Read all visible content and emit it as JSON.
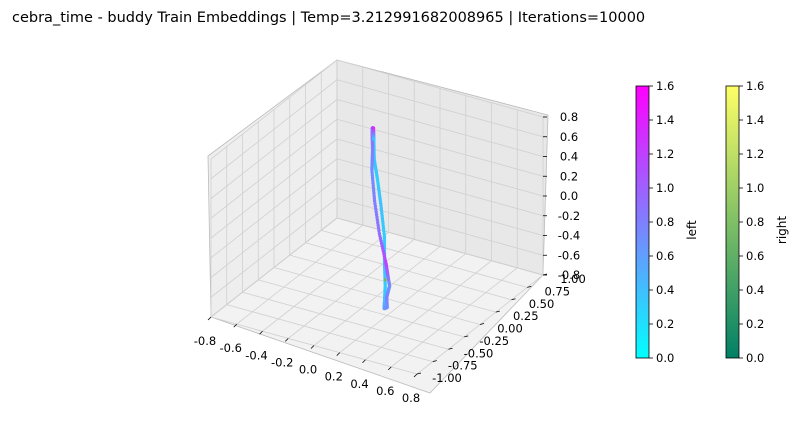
{
  "title": "cebra_time - buddy Train Embeddings | Temp=3.212991682008965 | Iterations=10000",
  "chart_data": {
    "type": "scatter",
    "projection": "3d",
    "title": "cebra_time - buddy Train Embeddings | Temp=3.212991682008965 | Iterations=10000",
    "grid": true,
    "axes": {
      "x": {
        "range": [
          -0.8,
          0.8
        ],
        "ticks": [
          "-0.8",
          "-0.6",
          "-0.4",
          "-0.2",
          "0.0",
          "0.2",
          "0.4",
          "0.6",
          "0.8"
        ]
      },
      "y": {
        "range": [
          -1.0,
          1.0
        ],
        "ticks": [
          "-1.00",
          "-0.75",
          "-0.50",
          "-0.25",
          "0.00",
          "0.25",
          "0.50",
          "0.75",
          "1.00"
        ]
      },
      "z": {
        "range": [
          -0.8,
          0.8
        ],
        "ticks": [
          "-0.8",
          "-0.6",
          "-0.4",
          "-0.2",
          "0.0",
          "0.2",
          "0.4",
          "0.6",
          "0.8"
        ]
      }
    },
    "series": [
      {
        "colormap": "cool",
        "colorbar_label": "left",
        "points": [
          [
            0.0,
            -0.05,
            0.8,
            0.3
          ],
          [
            0.1,
            -0.25,
            0.75,
            0.4
          ],
          [
            0.2,
            -0.4,
            0.65,
            0.3
          ],
          [
            0.3,
            -0.55,
            0.5,
            0.4
          ],
          [
            0.4,
            -0.7,
            0.3,
            0.3
          ],
          [
            0.45,
            -0.8,
            0.1,
            0.5
          ],
          [
            0.48,
            -0.85,
            -0.1,
            0.3
          ],
          [
            0.45,
            -0.8,
            -0.3,
            0.4
          ],
          [
            0.35,
            -0.6,
            -0.5,
            0.6
          ],
          [
            0.25,
            -0.35,
            -0.65,
            0.7
          ],
          [
            0.1,
            -0.05,
            -0.75,
            0.8
          ],
          [
            0.0,
            0.2,
            -0.8,
            0.7
          ],
          [
            -0.15,
            0.45,
            -0.75,
            1.2
          ],
          [
            -0.3,
            0.65,
            -0.6,
            0.9
          ],
          [
            -0.42,
            0.82,
            -0.4,
            0.8
          ],
          [
            -0.48,
            0.9,
            -0.15,
            0.7
          ],
          [
            -0.45,
            0.85,
            0.1,
            0.8
          ],
          [
            -0.38,
            0.7,
            0.35,
            0.9
          ],
          [
            -0.28,
            0.5,
            0.55,
            0.8
          ],
          [
            -0.15,
            0.25,
            0.72,
            1.4
          ]
        ]
      },
      {
        "colormap": "summer",
        "colorbar_label": "right",
        "points": [
          [
            0.47,
            -0.83,
            -0.05,
            0.7
          ]
        ]
      }
    ],
    "colorbars": [
      {
        "label": "left",
        "colormap": "cool",
        "range": [
          0.0,
          1.6
        ],
        "ticks": [
          "0.0",
          "0.2",
          "0.4",
          "0.6",
          "0.8",
          "1.0",
          "1.2",
          "1.4",
          "1.6"
        ]
      },
      {
        "label": "right",
        "colormap": "summer",
        "range": [
          0.0,
          1.6
        ],
        "ticks": [
          "0.0",
          "0.2",
          "0.4",
          "0.6",
          "0.8",
          "1.0",
          "1.2",
          "1.4",
          "1.6"
        ]
      }
    ]
  }
}
